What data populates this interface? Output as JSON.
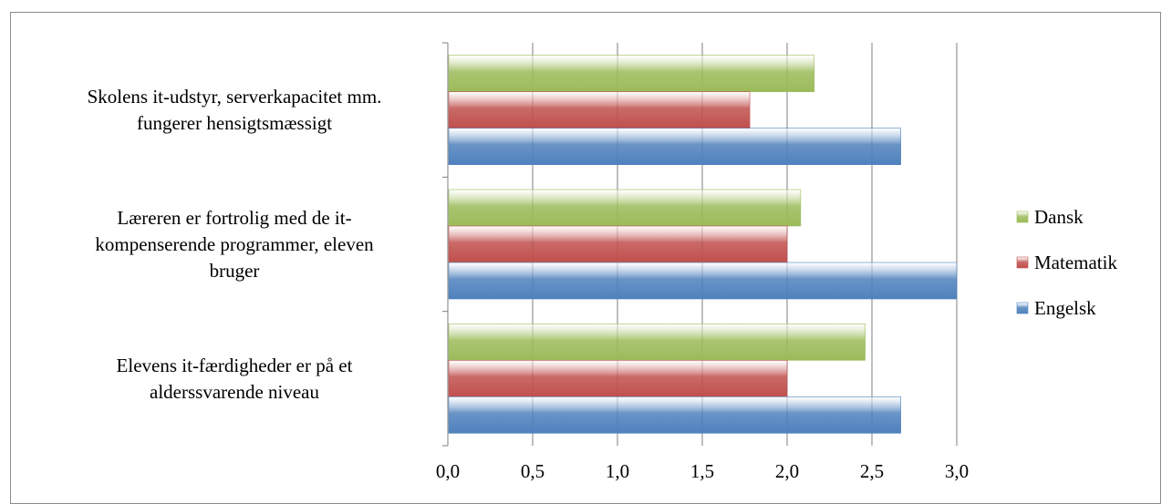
{
  "chart_data": {
    "type": "bar",
    "orientation": "horizontal",
    "categories": [
      "Skolens it-udstyr, serverkapacitet mm. fungerer hensigtsmæssigt",
      "Læreren er fortrolig med de it-kompenserende programmer, eleven bruger",
      "Elevens it-færdigheder er på et alderssvarende niveau"
    ],
    "category_lines": [
      [
        "Skolens it-udstyr, serverkapacitet mm.",
        "fungerer hensigtsmæssigt"
      ],
      [
        "Læreren er fortrolig med de it-",
        "kompenserende programmer, eleven",
        "bruger"
      ],
      [
        "Elevens it-færdigheder er på et",
        "alderssvarende niveau"
      ]
    ],
    "series": [
      {
        "name": "Dansk",
        "color": "#9bbb59",
        "values": [
          2.16,
          2.08,
          2.46
        ]
      },
      {
        "name": "Matematik",
        "color": "#c0504d",
        "values": [
          1.78,
          2.0,
          2.0
        ]
      },
      {
        "name": "Engelsk",
        "color": "#4f81bd",
        "values": [
          2.67,
          3.0,
          2.67
        ]
      }
    ],
    "xlim": [
      0,
      3.0
    ],
    "xticks": [
      "0,0",
      "0,5",
      "1,0",
      "1,5",
      "2,0",
      "2,5",
      "3,0"
    ],
    "grid": true,
    "legend_position": "right",
    "title": "",
    "xlabel": "",
    "ylabel": ""
  }
}
